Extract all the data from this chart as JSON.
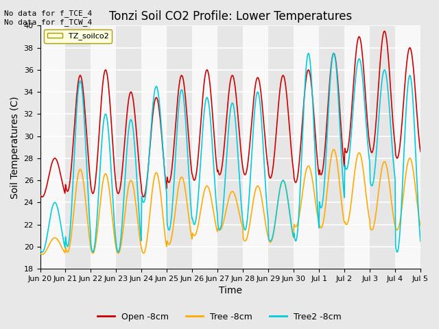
{
  "title": "Tonzi Soil CO2 Profile: Lower Temperatures",
  "xlabel": "Time",
  "ylabel": "Soil Temperatures (C)",
  "ylim": [
    18,
    40
  ],
  "yticks": [
    18,
    20,
    22,
    24,
    26,
    28,
    30,
    32,
    34,
    36,
    38,
    40
  ],
  "annotation_text": "No data for f_TCE_4\nNo data for f_TCW_4",
  "legend_label": "TZ_soilco2",
  "legend_entries": [
    "Open -8cm",
    "Tree -8cm",
    "Tree2 -8cm"
  ],
  "line_colors": [
    "#cc0000",
    "#ffaa00",
    "#00ccdd"
  ],
  "background_color": "#e8e8e8",
  "plot_bg_color": "#f0f0f0",
  "grid_color": "#ffffff",
  "xtick_labels": [
    "Jun 20",
    "Jun 21",
    "Jun 22",
    "Jun 23",
    "Jun 24",
    "Jun 25",
    "Jun 26",
    "Jun 27",
    "Jun 28",
    "Jun 29",
    "Jun 30",
    "Jul 1",
    "Jul 2",
    "Jul 3",
    "Jul 4",
    "Jul 5"
  ],
  "n_days": 15,
  "open_peaks": [
    28.0,
    35.5,
    36.0,
    34.0,
    33.5,
    35.5,
    36.0,
    35.5,
    35.3,
    35.5,
    36.0,
    37.5,
    39.0,
    39.5,
    38.0
  ],
  "open_troughs": [
    24.5,
    25.0,
    24.8,
    24.8,
    24.5,
    25.8,
    26.0,
    26.5,
    26.5,
    26.2,
    25.8,
    26.5,
    28.5,
    28.5,
    28.0
  ],
  "tree_peaks": [
    20.8,
    27.0,
    26.6,
    26.0,
    26.7,
    26.3,
    25.5,
    25.0,
    25.5,
    26.0,
    27.3,
    28.8,
    28.5,
    27.7,
    28.0
  ],
  "tree_troughs": [
    19.3,
    19.5,
    19.4,
    19.4,
    19.4,
    20.2,
    21.0,
    21.5,
    20.5,
    20.4,
    21.8,
    21.7,
    22.0,
    21.5,
    21.5
  ],
  "tree2_peaks": [
    24.0,
    35.0,
    32.0,
    31.5,
    34.5,
    34.2,
    33.5,
    33.0,
    34.0,
    26.0,
    37.5,
    37.5,
    37.0,
    36.0,
    35.5
  ],
  "tree2_troughs": [
    19.5,
    20.0,
    19.5,
    19.5,
    24.0,
    21.5,
    22.0,
    21.5,
    21.5,
    20.5,
    20.5,
    23.5,
    27.0,
    25.5,
    19.5
  ]
}
